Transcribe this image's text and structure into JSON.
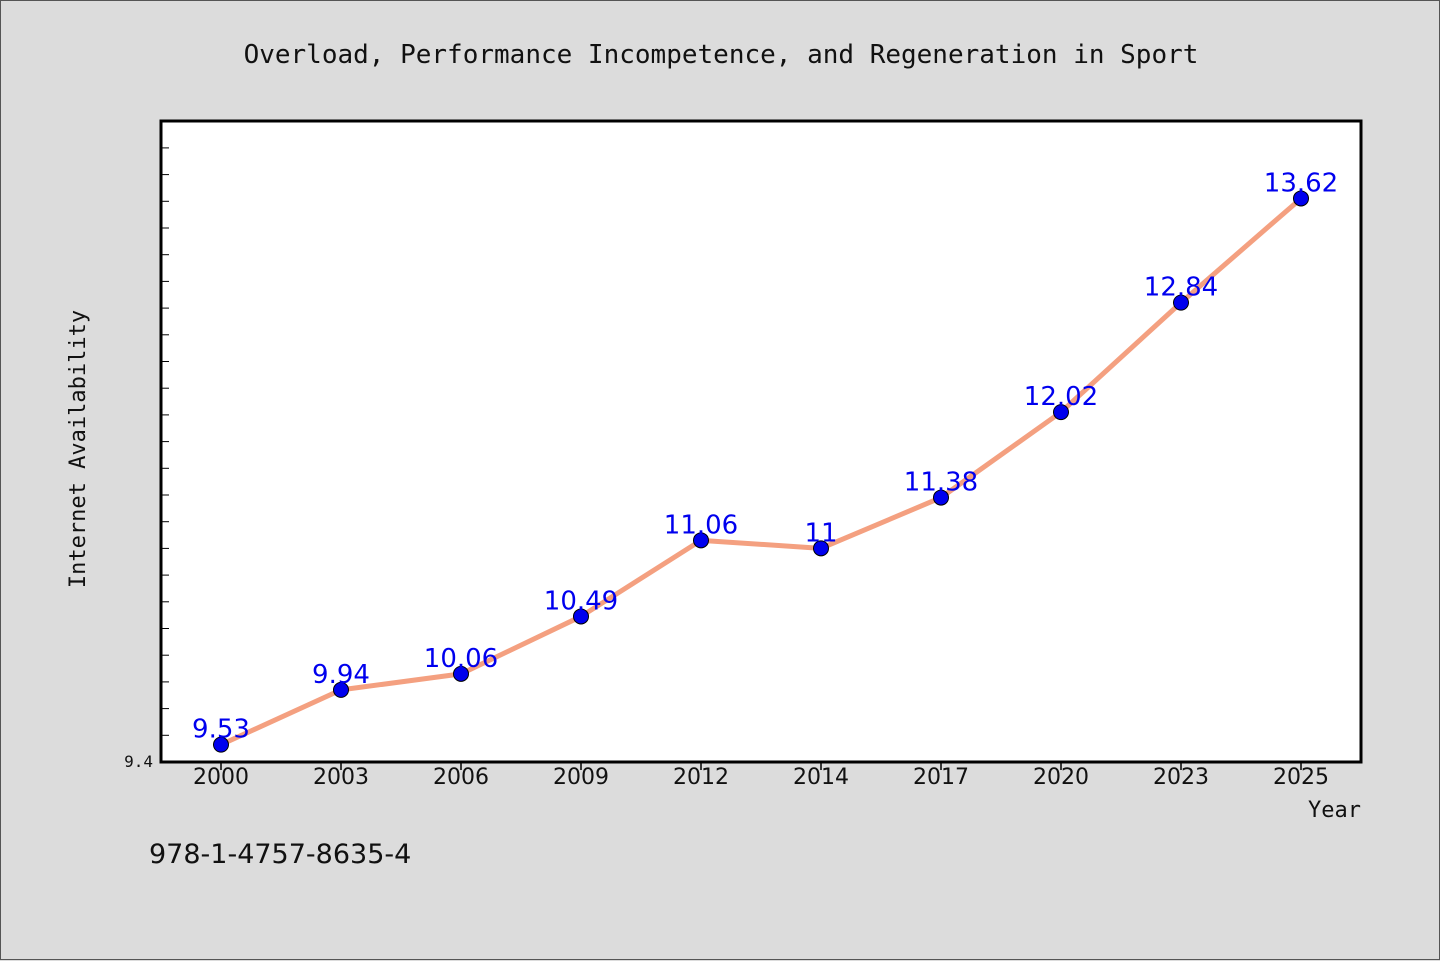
{
  "chart_data": {
    "type": "line",
    "title": "Overload, Performance Incompetence, and Regeneration in Sport",
    "xlabel": "Year",
    "ylabel": "Internet Availability",
    "categories": [
      "2000",
      "2003",
      "2006",
      "2009",
      "2012",
      "2014",
      "2017",
      "2020",
      "2023",
      "2025"
    ],
    "series": [
      {
        "values": [
          9.53,
          9.94,
          10.06,
          10.49,
          11.06,
          11.0,
          11.38,
          12.02,
          12.84,
          13.62
        ]
      }
    ],
    "data_labels": [
      "9.53",
      "9.94",
      "10.06",
      "10.49",
      "11.06",
      "11",
      "11.38",
      "12.02",
      "12.84",
      "13.62"
    ],
    "y_tick_labels": [
      "9.4"
    ],
    "ylim": [
      9.4,
      14.2
    ],
    "grid": false,
    "legend": "none",
    "colors": {
      "line": "#f4a080",
      "marker": "#0000ee",
      "data_label": "#0000ee",
      "background": "#dcdcdc",
      "plot_background": "#ffffff"
    }
  },
  "footer": {
    "isbn": "978-1-4757-8635-4"
  }
}
